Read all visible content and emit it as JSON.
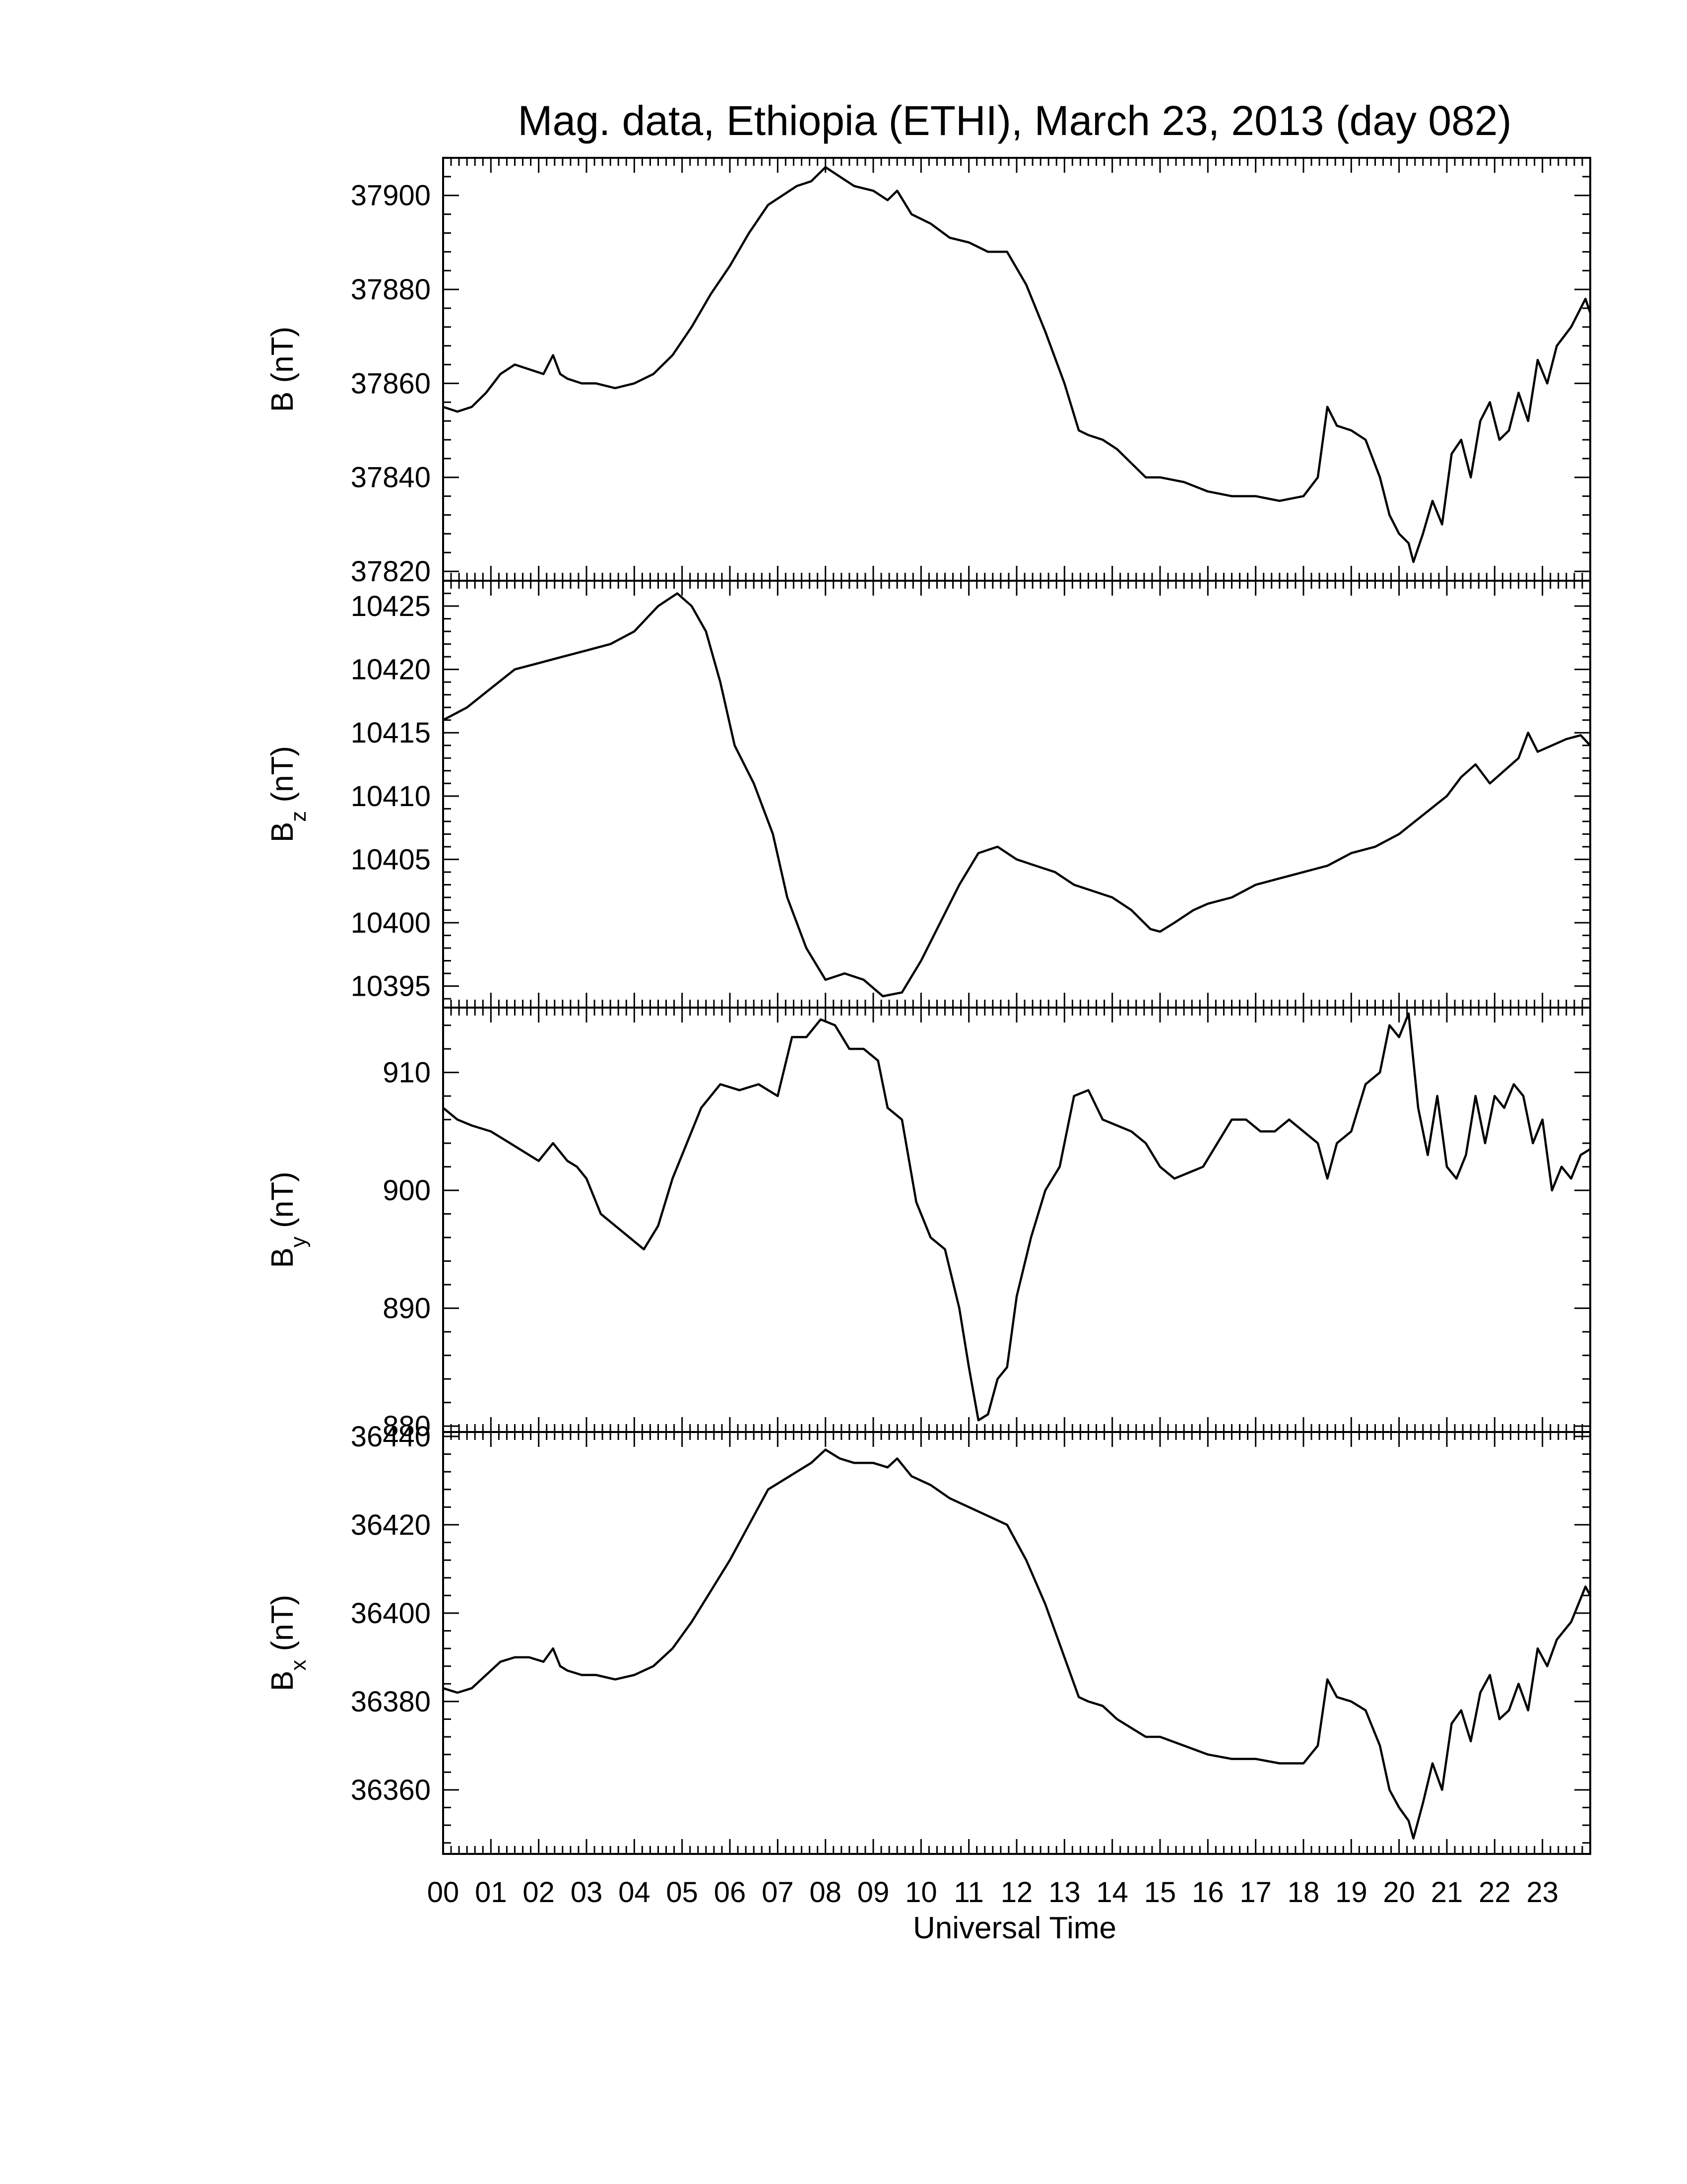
{
  "figure": {
    "title": "Mag. data, Ethiopia (ETHI), March 23, 2013 (day 082)",
    "xlabel": "Universal Time",
    "line_color": "#000000",
    "background": "#ffffff"
  },
  "chart_data": [
    {
      "type": "line",
      "ylabel": "B (nT)",
      "ylabel_main": "B",
      "ylabel_sub": "",
      "ylabel_unit": "(nT)",
      "ylim": [
        37818,
        37908
      ],
      "yticks": [
        37820,
        37840,
        37860,
        37880,
        37900
      ],
      "xlim": [
        0,
        24
      ],
      "series": [
        {
          "x": [
            0,
            0.3,
            0.6,
            0.9,
            1.2,
            1.5,
            1.8,
            2.1,
            2.3,
            2.45,
            2.6,
            2.9,
            3.2,
            3.6,
            4.0,
            4.4,
            4.8,
            5.2,
            5.6,
            6.0,
            6.4,
            6.8,
            7.1,
            7.4,
            7.7,
            8.0,
            8.3,
            8.6,
            9.0,
            9.3,
            9.5,
            9.8,
            10.2,
            10.6,
            11.0,
            11.4,
            11.8,
            12.2,
            12.6,
            13.0,
            13.3,
            13.5,
            13.8,
            14.1,
            14.4,
            14.7,
            15.0,
            15.5,
            16.0,
            16.5,
            17.0,
            17.5,
            18.0,
            18.3,
            18.5,
            18.7,
            19.0,
            19.3,
            19.6,
            19.8,
            20.0,
            20.2,
            20.3,
            20.5,
            20.7,
            20.9,
            21.1,
            21.3,
            21.5,
            21.7,
            21.9,
            22.1,
            22.3,
            22.5,
            22.7,
            22.9,
            23.1,
            23.3,
            23.6,
            23.9,
            24.0
          ],
          "y": [
            37855,
            37854,
            37855,
            37858,
            37862,
            37864,
            37863,
            37862,
            37866,
            37862,
            37861,
            37860,
            37860,
            37859,
            37860,
            37862,
            37866,
            37872,
            37879,
            37885,
            37892,
            37898,
            37900,
            37902,
            37903,
            37906,
            37904,
            37902,
            37901,
            37899,
            37901,
            37896,
            37894,
            37891,
            37890,
            37888,
            37888,
            37881,
            37871,
            37860,
            37850,
            37849,
            37848,
            37846,
            37843,
            37840,
            37840,
            37839,
            37837,
            37836,
            37836,
            37835,
            37836,
            37840,
            37855,
            37851,
            37850,
            37848,
            37840,
            37832,
            37828,
            37826,
            37822,
            37828,
            37835,
            37830,
            37845,
            37848,
            37840,
            37852,
            37856,
            37848,
            37850,
            37858,
            37852,
            37865,
            37860,
            37868,
            37872,
            37878,
            37875
          ]
        }
      ]
    },
    {
      "type": "line",
      "ylabel": "Bz (nT)",
      "ylabel_main": "B",
      "ylabel_sub": "z",
      "ylabel_unit": "(nT)",
      "ylim": [
        10393.3,
        10427
      ],
      "yticks": [
        10395,
        10400,
        10405,
        10410,
        10415,
        10420,
        10425
      ],
      "xlim": [
        0,
        24
      ],
      "series": [
        {
          "x": [
            0,
            0.5,
            1.0,
            1.5,
            2.0,
            2.5,
            3.0,
            3.5,
            4.0,
            4.5,
            4.9,
            5.2,
            5.5,
            5.8,
            6.1,
            6.5,
            6.9,
            7.2,
            7.6,
            8.0,
            8.4,
            8.8,
            9.2,
            9.6,
            10.0,
            10.4,
            10.8,
            11.2,
            11.6,
            12.0,
            12.4,
            12.8,
            13.2,
            13.6,
            14.0,
            14.4,
            14.8,
            15.0,
            15.3,
            15.7,
            16.0,
            16.5,
            17.0,
            17.5,
            18.0,
            18.5,
            19.0,
            19.5,
            20.0,
            20.5,
            21.0,
            21.3,
            21.6,
            21.9,
            22.2,
            22.5,
            22.7,
            22.9,
            23.2,
            23.5,
            23.8,
            24.0
          ],
          "y": [
            10416,
            10417,
            10418.5,
            10420,
            10420.5,
            10421,
            10421.5,
            10422,
            10423,
            10425,
            10426,
            10425,
            10423,
            10419,
            10414,
            10411,
            10407,
            10402,
            10398,
            10395.5,
            10396,
            10395.5,
            10394.2,
            10394.5,
            10397,
            10400,
            10403,
            10405.5,
            10406,
            10405,
            10404.5,
            10404,
            10403,
            10402.5,
            10402,
            10401,
            10399.5,
            10399.3,
            10400,
            10401,
            10401.5,
            10402,
            10403,
            10403.5,
            10404,
            10404.5,
            10405.5,
            10406,
            10407,
            10408.5,
            10410,
            10411.5,
            10412.5,
            10411,
            10412,
            10413,
            10415,
            10413.5,
            10414,
            10414.5,
            10414.8,
            10414
          ]
        }
      ]
    },
    {
      "type": "line",
      "ylabel": "By (nT)",
      "ylabel_main": "B",
      "ylabel_sub": "y",
      "ylabel_unit": "(nT)",
      "ylim": [
        879.5,
        915.5
      ],
      "yticks": [
        880,
        890,
        900,
        910
      ],
      "xlim": [
        0,
        24
      ],
      "series": [
        {
          "x": [
            0,
            0.3,
            0.6,
            1.0,
            1.4,
            1.8,
            2.0,
            2.3,
            2.6,
            2.8,
            3.0,
            3.3,
            3.6,
            3.9,
            4.2,
            4.5,
            4.8,
            5.1,
            5.4,
            5.8,
            6.2,
            6.6,
            7.0,
            7.3,
            7.6,
            7.9,
            8.2,
            8.5,
            8.8,
            9.1,
            9.3,
            9.6,
            9.9,
            10.2,
            10.5,
            10.8,
            11.0,
            11.2,
            11.4,
            11.6,
            11.8,
            12.0,
            12.3,
            12.6,
            12.9,
            13.2,
            13.5,
            13.8,
            14.1,
            14.4,
            14.7,
            15.0,
            15.3,
            15.6,
            15.9,
            16.2,
            16.5,
            16.8,
            17.1,
            17.4,
            17.7,
            18.0,
            18.3,
            18.5,
            18.7,
            19.0,
            19.3,
            19.6,
            19.8,
            20.0,
            20.2,
            20.4,
            20.6,
            20.8,
            21.0,
            21.2,
            21.4,
            21.6,
            21.8,
            22.0,
            22.2,
            22.4,
            22.6,
            22.8,
            23.0,
            23.2,
            23.4,
            23.6,
            23.8,
            24.0
          ],
          "y": [
            907,
            906,
            905.5,
            905,
            904,
            903,
            902.5,
            904,
            902.5,
            902,
            901,
            898,
            897,
            896,
            895,
            897,
            901,
            904,
            907,
            909,
            908.5,
            909,
            908,
            913,
            913,
            914.5,
            914,
            912,
            912,
            911,
            907,
            906,
            899,
            896,
            895,
            890,
            885,
            880.5,
            881,
            884,
            885,
            891,
            896,
            900,
            902,
            908,
            908.5,
            906,
            905.5,
            905,
            904,
            902,
            901,
            901.5,
            902,
            904,
            906,
            906,
            905,
            905,
            906,
            905,
            904,
            901,
            904,
            905,
            909,
            910,
            914,
            913,
            915,
            907,
            903,
            908,
            902,
            901,
            903,
            908,
            904,
            908,
            907,
            909,
            908,
            904,
            906,
            900,
            902,
            901,
            903,
            903.5
          ]
        }
      ]
    },
    {
      "type": "line",
      "ylabel": "Bx (nT)",
      "ylabel_main": "B",
      "ylabel_sub": "x",
      "ylabel_unit": "(nT)",
      "ylim": [
        36345.5,
        36441
      ],
      "yticks": [
        36360,
        36380,
        36400,
        36420,
        36440
      ],
      "xlim": [
        0,
        24
      ],
      "series": [
        {
          "x": [
            0,
            0.3,
            0.6,
            0.9,
            1.2,
            1.5,
            1.8,
            2.1,
            2.3,
            2.45,
            2.6,
            2.9,
            3.2,
            3.6,
            4.0,
            4.4,
            4.8,
            5.2,
            5.6,
            6.0,
            6.4,
            6.8,
            7.1,
            7.4,
            7.7,
            8.0,
            8.3,
            8.6,
            9.0,
            9.3,
            9.5,
            9.8,
            10.2,
            10.6,
            11.0,
            11.4,
            11.8,
            12.2,
            12.6,
            13.0,
            13.3,
            13.5,
            13.8,
            14.1,
            14.4,
            14.7,
            15.0,
            15.5,
            16.0,
            16.5,
            17.0,
            17.5,
            18.0,
            18.3,
            18.5,
            18.7,
            19.0,
            19.3,
            19.6,
            19.8,
            20.0,
            20.2,
            20.3,
            20.5,
            20.7,
            20.9,
            21.1,
            21.3,
            21.5,
            21.7,
            21.9,
            22.1,
            22.3,
            22.5,
            22.7,
            22.9,
            23.1,
            23.3,
            23.6,
            23.9,
            24.0
          ],
          "y": [
            36383,
            36382,
            36383,
            36386,
            36389,
            36390,
            36390,
            36389,
            36392,
            36388,
            36387,
            36386,
            36386,
            36385,
            36386,
            36388,
            36392,
            36398,
            36405,
            36412,
            36420,
            36428,
            36430,
            36432,
            36434,
            36437,
            36435,
            36434,
            36434,
            36433,
            36435,
            36431,
            36429,
            36426,
            36424,
            36422,
            36420,
            36412,
            36402,
            36390,
            36381,
            36380,
            36379,
            36376,
            36374,
            36372,
            36372,
            36370,
            36368,
            36367,
            36367,
            36366,
            36366,
            36370,
            36385,
            36381,
            36380,
            36378,
            36370,
            36360,
            36356,
            36353,
            36349,
            36357,
            36366,
            36360,
            36375,
            36378,
            36371,
            36382,
            36386,
            36376,
            36378,
            36384,
            36378,
            36392,
            36388,
            36394,
            36398,
            36406,
            36404
          ]
        }
      ]
    }
  ],
  "xaxis": {
    "ticks": [
      "00",
      "01",
      "02",
      "03",
      "04",
      "05",
      "06",
      "07",
      "08",
      "09",
      "10",
      "11",
      "12",
      "13",
      "14",
      "15",
      "16",
      "17",
      "18",
      "19",
      "20",
      "21",
      "22",
      "23"
    ]
  }
}
